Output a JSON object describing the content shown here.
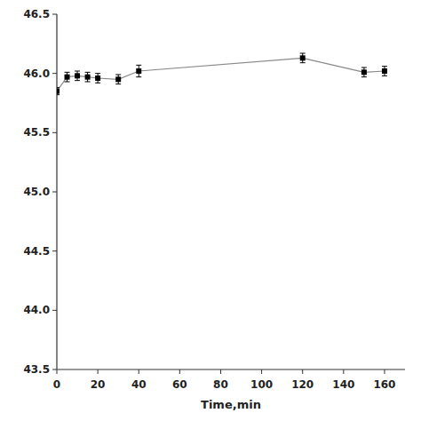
{
  "chart_data": {
    "type": "line",
    "xlabel": "Time,min",
    "x": [
      0,
      5,
      10,
      15,
      20,
      30,
      40,
      120,
      150,
      160
    ],
    "values": [
      45.85,
      45.97,
      45.98,
      45.97,
      45.96,
      45.95,
      46.02,
      46.13,
      46.01,
      46.02
    ],
    "errors": [
      0.03,
      0.04,
      0.04,
      0.04,
      0.04,
      0.04,
      0.05,
      0.04,
      0.04,
      0.04
    ],
    "xlim": [
      0,
      170
    ],
    "ylim": [
      43.5,
      46.5
    ],
    "xticks": [
      0,
      20,
      40,
      60,
      80,
      100,
      120,
      140,
      160
    ],
    "yticks": [
      43.5,
      {
        "value": 44,
        "label": "44.0"
      },
      44.5,
      {
        "value": 45,
        "label": "45.0"
      },
      45.5,
      {
        "value": 46,
        "label": "46.0"
      },
      46.5
    ],
    "color": "#888888",
    "colors": [
      "#000000",
      "#000000",
      "#000000",
      "#000000",
      "#000000",
      "#000000",
      "#000000",
      "#000000",
      "#000000",
      "#000000"
    ],
    "marker": "square",
    "grid": false
  }
}
